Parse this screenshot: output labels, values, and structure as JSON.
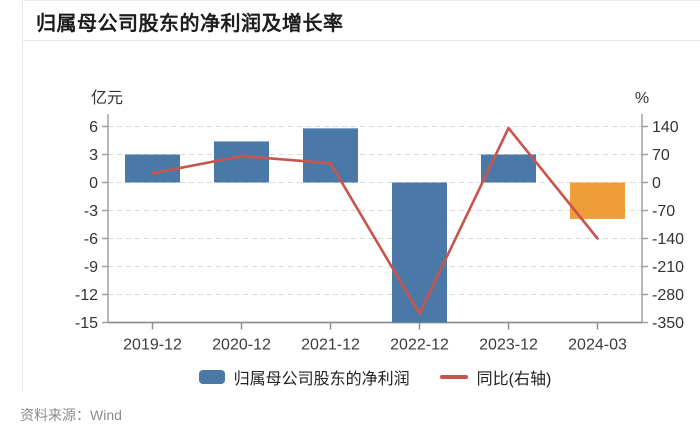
{
  "title": "归属母公司股东的净利润及增长率",
  "source": "资料来源：Wind",
  "legend": {
    "bar_label": "归属母公司股东的净利润",
    "line_label": "同比(右轴)"
  },
  "chart_data": {
    "type": "bar",
    "title": "归属母公司股东的净利润及增长率",
    "categories": [
      "2019-12",
      "2020-12",
      "2021-12",
      "2022-12",
      "2023-12",
      "2024-03"
    ],
    "series": [
      {
        "name": "归属母公司股东的净利润",
        "type": "bar",
        "axis": "left",
        "unit": "亿元",
        "values": [
          3.0,
          4.4,
          5.8,
          -15.0,
          3.0,
          -3.9
        ],
        "bar_colors": [
          "#4a79a8",
          "#4a79a8",
          "#4a79a8",
          "#4a79a8",
          "#4a79a8",
          "#ef9d3b"
        ]
      },
      {
        "name": "同比(右轴)",
        "type": "line",
        "axis": "right",
        "unit": "%",
        "values": [
          23,
          66,
          48,
          -328,
          136,
          -140
        ],
        "color": "#c9544b"
      }
    ],
    "left_axis": {
      "unit": "亿元",
      "min": -15,
      "max": 6,
      "step": 3,
      "ticks": [
        6,
        3,
        0,
        -3,
        -6,
        -9,
        -12,
        -15
      ]
    },
    "right_axis": {
      "unit": "%",
      "min": -350,
      "max": 140,
      "step": 70,
      "ticks": [
        140,
        70,
        0,
        -70,
        -140,
        -210,
        -280,
        -350
      ]
    },
    "grid": "dashed-horizontal",
    "legend_position": "bottom-center"
  }
}
